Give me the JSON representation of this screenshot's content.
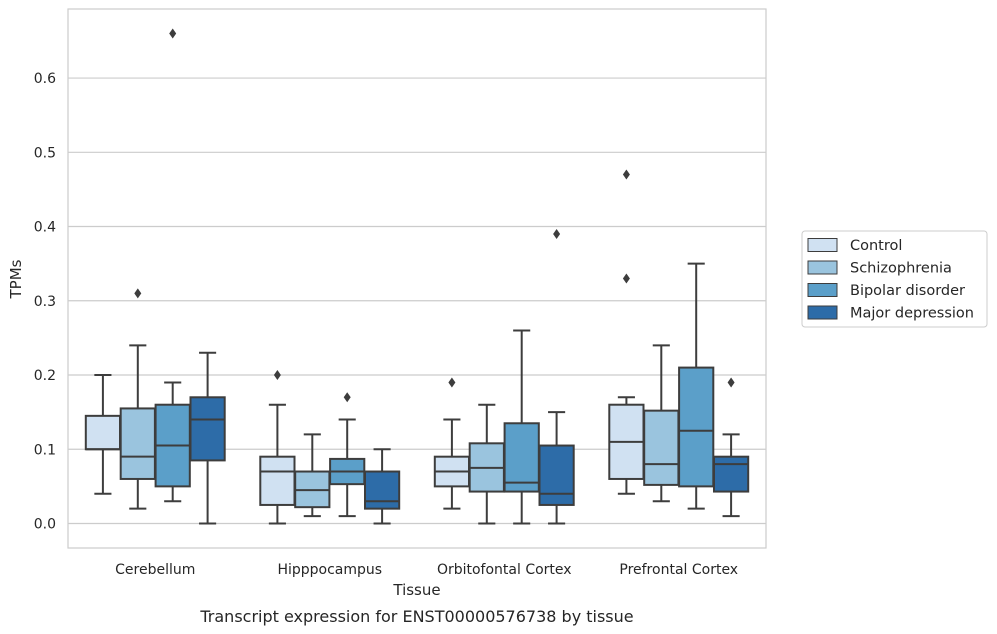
{
  "chart_data": {
    "type": "box",
    "caption": "Transcript expression for ENST00000576738 by tissue",
    "xlabel": "Tissue",
    "ylabel": "TPMs",
    "ylim": [
      -0.033,
      0.693
    ],
    "yticks": [
      0.0,
      0.1,
      0.2,
      0.3,
      0.4,
      0.5,
      0.6
    ],
    "ytick_labels": [
      "0.0",
      "0.1",
      "0.2",
      "0.3",
      "0.4",
      "0.5",
      "0.6"
    ],
    "grid": "horizontal",
    "legend_position": "right",
    "categories": [
      "Cerebellum",
      "Hipppocampus",
      "Orbitofontal Cortex",
      "Prefrontal Cortex"
    ],
    "series": [
      {
        "name": "Control",
        "color": "#d0e1f2",
        "boxes": [
          {
            "whislo": 0.04,
            "q1": 0.1,
            "med": 0.1,
            "q3": 0.145,
            "whishi": 0.2,
            "fliers": []
          },
          {
            "whislo": 0.0,
            "q1": 0.025,
            "med": 0.07,
            "q3": 0.09,
            "whishi": 0.16,
            "fliers": [
              0.2
            ]
          },
          {
            "whislo": 0.02,
            "q1": 0.05,
            "med": 0.07,
            "q3": 0.09,
            "whishi": 0.14,
            "fliers": [
              0.19
            ]
          },
          {
            "whislo": 0.04,
            "q1": 0.06,
            "med": 0.11,
            "q3": 0.16,
            "whishi": 0.17,
            "fliers": [
              0.33,
              0.47
            ]
          }
        ]
      },
      {
        "name": "Schizophrenia",
        "color": "#9ac4de",
        "boxes": [
          {
            "whislo": 0.02,
            "q1": 0.06,
            "med": 0.09,
            "q3": 0.155,
            "whishi": 0.24,
            "fliers": [
              0.31
            ]
          },
          {
            "whislo": 0.01,
            "q1": 0.022,
            "med": 0.045,
            "q3": 0.07,
            "whishi": 0.12,
            "fliers": []
          },
          {
            "whislo": 0.0,
            "q1": 0.043,
            "med": 0.075,
            "q3": 0.108,
            "whishi": 0.16,
            "fliers": []
          },
          {
            "whislo": 0.03,
            "q1": 0.052,
            "med": 0.08,
            "q3": 0.152,
            "whishi": 0.24,
            "fliers": []
          }
        ]
      },
      {
        "name": "Bipolar disorder",
        "color": "#5b9fc9",
        "boxes": [
          {
            "whislo": 0.03,
            "q1": 0.05,
            "med": 0.105,
            "q3": 0.16,
            "whishi": 0.19,
            "fliers": [
              0.66
            ]
          },
          {
            "whislo": 0.01,
            "q1": 0.053,
            "med": 0.07,
            "q3": 0.087,
            "whishi": 0.14,
            "fliers": [
              0.17
            ]
          },
          {
            "whislo": 0.0,
            "q1": 0.043,
            "med": 0.055,
            "q3": 0.135,
            "whishi": 0.26,
            "fliers": []
          },
          {
            "whislo": 0.02,
            "q1": 0.05,
            "med": 0.125,
            "q3": 0.21,
            "whishi": 0.35,
            "fliers": []
          }
        ]
      },
      {
        "name": "Major depression",
        "color": "#2d6ca8",
        "boxes": [
          {
            "whislo": 0.0,
            "q1": 0.085,
            "med": 0.14,
            "q3": 0.17,
            "whishi": 0.23,
            "fliers": []
          },
          {
            "whislo": 0.0,
            "q1": 0.02,
            "med": 0.03,
            "q3": 0.07,
            "whishi": 0.1,
            "fliers": []
          },
          {
            "whislo": 0.0,
            "q1": 0.025,
            "med": 0.04,
            "q3": 0.105,
            "whishi": 0.15,
            "fliers": [
              0.39
            ]
          },
          {
            "whislo": 0.01,
            "q1": 0.043,
            "med": 0.08,
            "q3": 0.09,
            "whishi": 0.12,
            "fliers": [
              0.19
            ]
          }
        ]
      }
    ]
  }
}
